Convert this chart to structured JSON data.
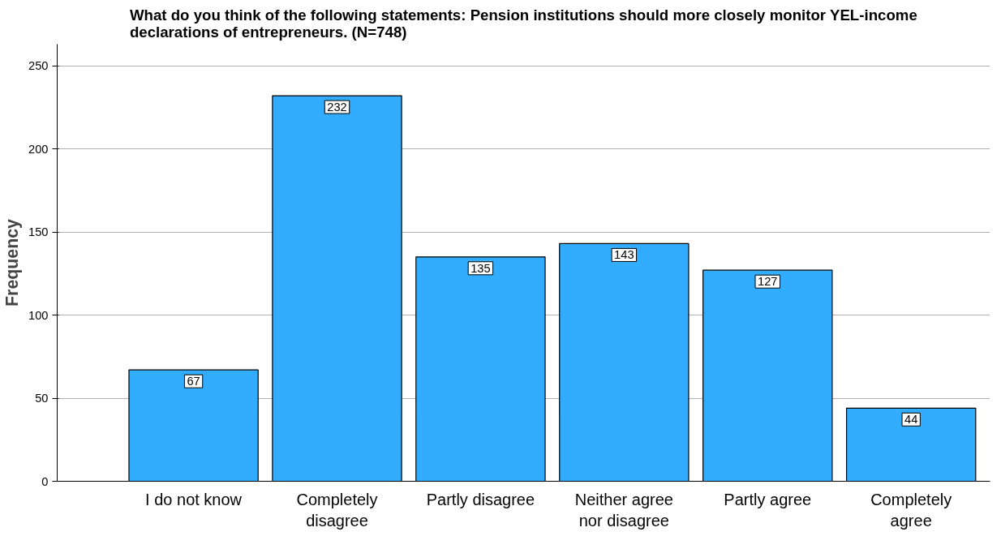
{
  "chart_data": {
    "type": "bar",
    "title": "What do you think of the following statements: Pension institutions should more closely monitor YEL-income declarations of entrepreneurs. (N=748)",
    "ylabel": "Frequency",
    "categories": [
      "I do not know",
      "Completely disagree",
      "Partly disagree",
      "Neither agree nor disagree",
      "Partly agree",
      "Completely agree"
    ],
    "values": [
      67,
      232,
      135,
      143,
      127,
      44
    ],
    "color": "#31acfe",
    "ylim": [
      0,
      263
    ],
    "yticks": [
      0,
      50,
      100,
      150,
      200,
      250
    ],
    "grid": "y",
    "data_labels": true
  }
}
